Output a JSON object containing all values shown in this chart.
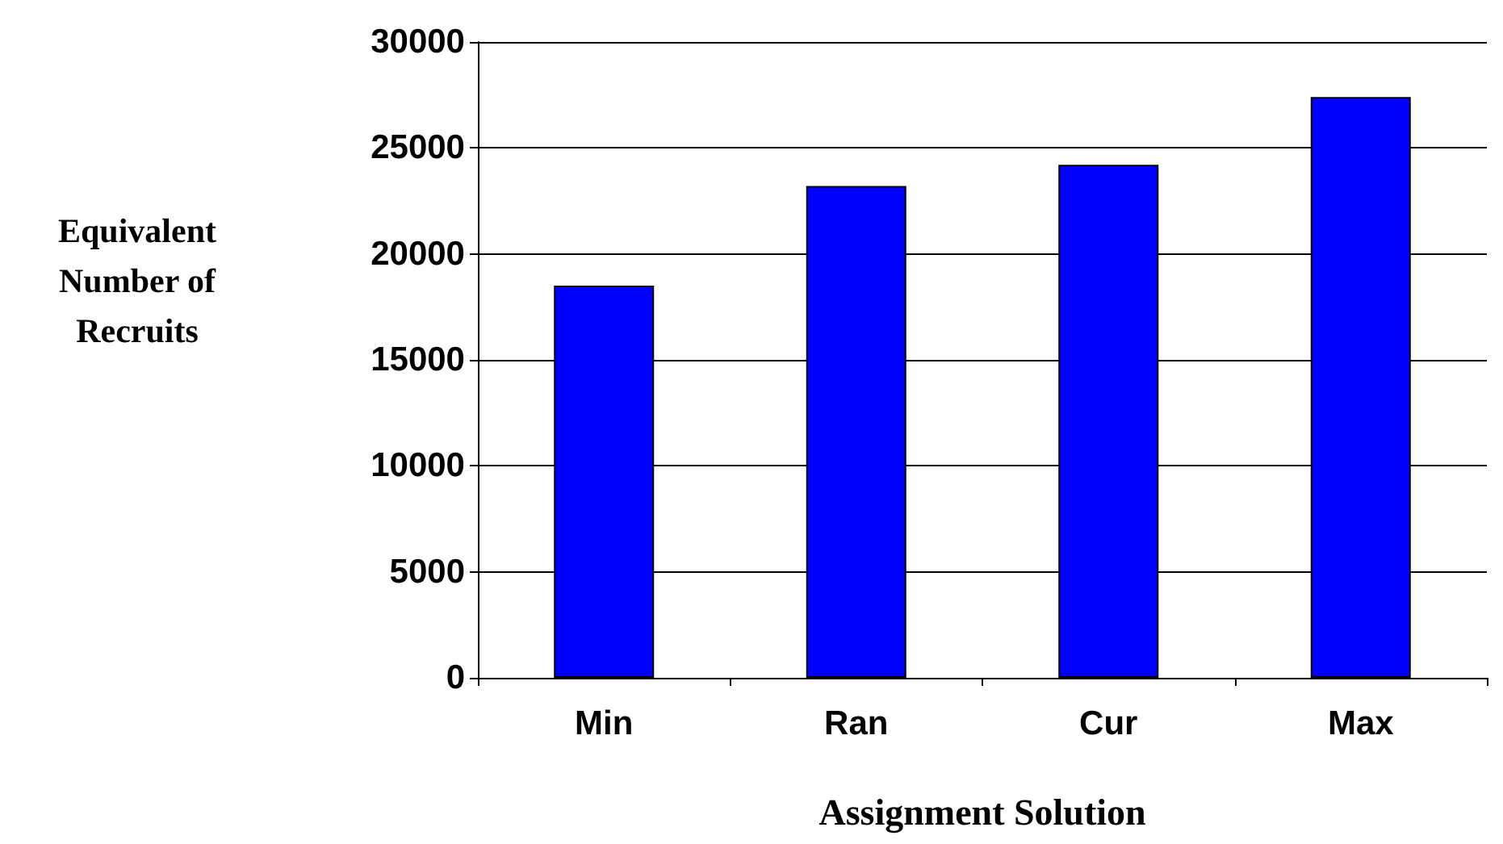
{
  "chart_data": {
    "type": "bar",
    "xlabel": "Assignment Solution",
    "ylabel": "Equivalent\nNumber of\nRecruits",
    "categories": [
      "Min",
      "Ran",
      "Cur",
      "Max"
    ],
    "values": [
      18500,
      23200,
      24200,
      27400
    ],
    "color": "#0000ff",
    "ylim": [
      0,
      30000
    ],
    "yticks": [
      0,
      5000,
      10000,
      15000,
      20000,
      25000,
      30000
    ],
    "grid": "y"
  }
}
